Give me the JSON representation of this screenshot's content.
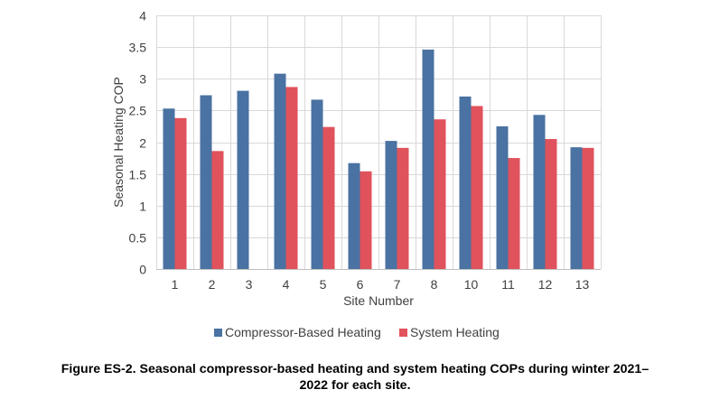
{
  "chart_data": {
    "type": "bar",
    "title": "",
    "xlabel": "Site Number",
    "ylabel": "Seasonal Heating COP",
    "ylim": [
      0,
      4
    ],
    "yticks": [
      "0",
      "0.5",
      "1",
      "1.5",
      "2",
      "2.5",
      "3",
      "3.5",
      "4"
    ],
    "grid": true,
    "legend_position": "bottom",
    "categories": [
      "1",
      "2",
      "3",
      "4",
      "5",
      "6",
      "7",
      "8",
      "10",
      "11",
      "12",
      "13"
    ],
    "series": [
      {
        "name": "Compressor-Based Heating",
        "color": "#4a72a2",
        "values": [
          2.53,
          2.74,
          2.81,
          3.08,
          2.67,
          1.67,
          2.02,
          3.46,
          2.72,
          2.25,
          2.43,
          1.92
        ]
      },
      {
        "name": "System Heating",
        "color": "#e0525c",
        "values": [
          2.38,
          1.86,
          null,
          2.87,
          2.24,
          1.54,
          1.91,
          2.36,
          2.57,
          1.75,
          2.05,
          1.91
        ]
      }
    ]
  },
  "caption": {
    "line1": "Figure ES-2. Seasonal compressor-based heating and system heating COPs during winter 2021–",
    "line2": "2022 for each site."
  }
}
